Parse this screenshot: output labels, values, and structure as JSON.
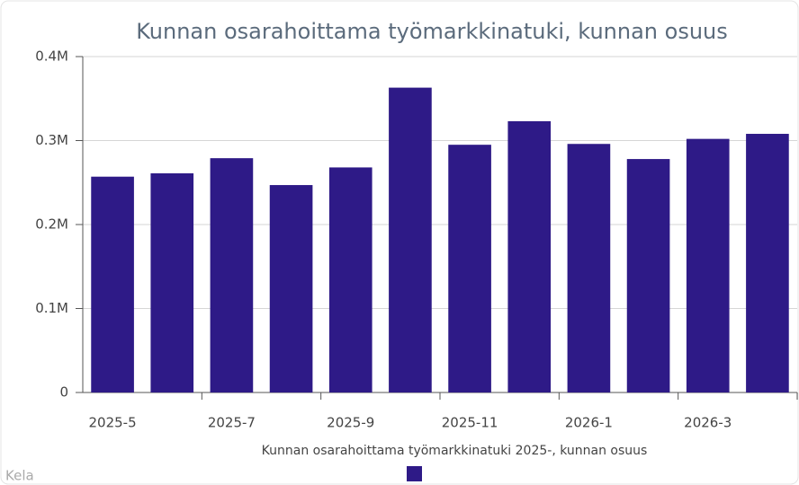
{
  "chart_data": {
    "type": "bar",
    "title": "Kunnan osarahoittama työmarkkinatuki, kunnan osuus",
    "categories": [
      "2025-5",
      null,
      "2025-7",
      null,
      "2025-9",
      null,
      "2025-11",
      null,
      "2026-1",
      null,
      "2026-3",
      null
    ],
    "series": [
      {
        "name": "Kunnan osarahoittama työmarkkinatuki 2025-, kunnan osuus",
        "color": "#2e1a87",
        "values": [
          257000,
          261000,
          279000,
          247000,
          268000,
          363000,
          295000,
          323000,
          296000,
          278000,
          302000,
          308000
        ]
      }
    ],
    "ylim": [
      0,
      400000
    ],
    "yticks": [
      0,
      {
        "value": 100000,
        "label": "0.1M"
      },
      {
        "value": 200000,
        "label": "0.2M"
      },
      {
        "value": 300000,
        "label": "0.3M"
      },
      {
        "value": 400000,
        "label": "0.4M"
      }
    ],
    "grid": true,
    "legend": "bottom",
    "source": "Kela"
  }
}
